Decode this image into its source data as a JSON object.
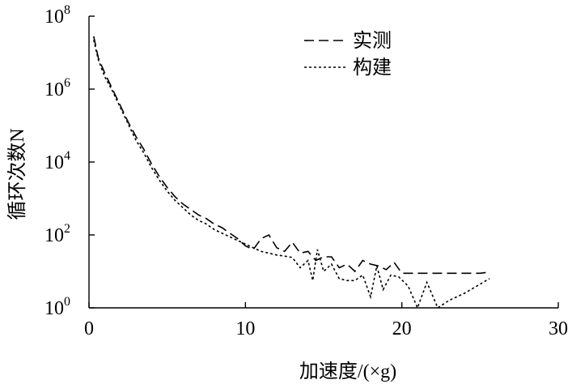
{
  "chart_data": {
    "type": "line",
    "xlabel": "加速度/(×g)",
    "ylabel": "循环次数N",
    "xlim": [
      0,
      30
    ],
    "ylim_exponent": [
      0,
      8
    ],
    "yscale": "log",
    "xticks": [
      "0",
      "10",
      "20",
      "30"
    ],
    "yticks": [
      {
        "base": "10",
        "exp": "0"
      },
      {
        "base": "10",
        "exp": "2"
      },
      {
        "base": "10",
        "exp": "4"
      },
      {
        "base": "10",
        "exp": "6"
      },
      {
        "base": "10",
        "exp": "8"
      }
    ],
    "legend_position": "top-right",
    "series": [
      {
        "name": "实测",
        "style": "dashed",
        "x": [
          0.3,
          0.6,
          1.0,
          1.5,
          2.0,
          2.5,
          3.0,
          3.5,
          4.0,
          4.5,
          5.0,
          5.5,
          6.0,
          6.5,
          7.0,
          7.5,
          8.0,
          8.5,
          9.0,
          9.5,
          10.0,
          10.5,
          11.0,
          11.5,
          12.0,
          12.5,
          13.0,
          13.5,
          14.0,
          14.5,
          15.0,
          15.5,
          16.0,
          16.5,
          17.0,
          17.5,
          18.0,
          18.5,
          19.0,
          19.5,
          20.0,
          21.0,
          22.0,
          23.0,
          24.0,
          25.0,
          25.6
        ],
        "y_log10": [
          7.45,
          6.85,
          6.45,
          6.0,
          5.55,
          5.1,
          4.7,
          4.35,
          3.95,
          3.6,
          3.3,
          3.05,
          2.85,
          2.7,
          2.55,
          2.45,
          2.3,
          2.2,
          2.05,
          1.9,
          1.7,
          1.6,
          1.9,
          2.0,
          1.65,
          1.55,
          1.8,
          1.5,
          1.55,
          1.3,
          1.4,
          1.4,
          1.1,
          1.2,
          1.0,
          1.3,
          1.2,
          1.15,
          1.05,
          1.25,
          0.95,
          0.95,
          0.95,
          0.95,
          0.95,
          0.95,
          0.98
        ]
      },
      {
        "name": "构建",
        "style": "dotted",
        "x": [
          0.3,
          0.6,
          1.0,
          1.5,
          2.0,
          2.5,
          3.0,
          3.5,
          4.0,
          4.5,
          5.0,
          5.5,
          6.0,
          6.5,
          7.0,
          7.5,
          8.0,
          8.5,
          9.0,
          9.5,
          10.0,
          10.5,
          11.0,
          11.5,
          12.0,
          12.5,
          13.0,
          13.5,
          14.0,
          14.3,
          14.6,
          15.0,
          15.5,
          16.0,
          16.5,
          17.0,
          17.5,
          18.0,
          18.4,
          18.8,
          19.3,
          19.8,
          20.4,
          21.0,
          21.6,
          22.3,
          23.0,
          24.0,
          25.0,
          25.6
        ],
        "y_log10": [
          7.35,
          6.8,
          6.35,
          5.95,
          5.5,
          5.05,
          4.6,
          4.25,
          3.85,
          3.5,
          3.2,
          2.95,
          2.75,
          2.55,
          2.4,
          2.3,
          2.15,
          2.05,
          1.95,
          1.85,
          1.75,
          1.65,
          1.55,
          1.5,
          1.45,
          1.42,
          1.38,
          1.1,
          1.3,
          0.75,
          1.6,
          1.0,
          1.2,
          0.8,
          0.75,
          0.75,
          0.9,
          0.3,
          1.15,
          0.5,
          0.9,
          0.85,
          0.6,
          0.0,
          0.7,
          0.0,
          0.2,
          0.4,
          0.65,
          0.8
        ]
      }
    ]
  }
}
